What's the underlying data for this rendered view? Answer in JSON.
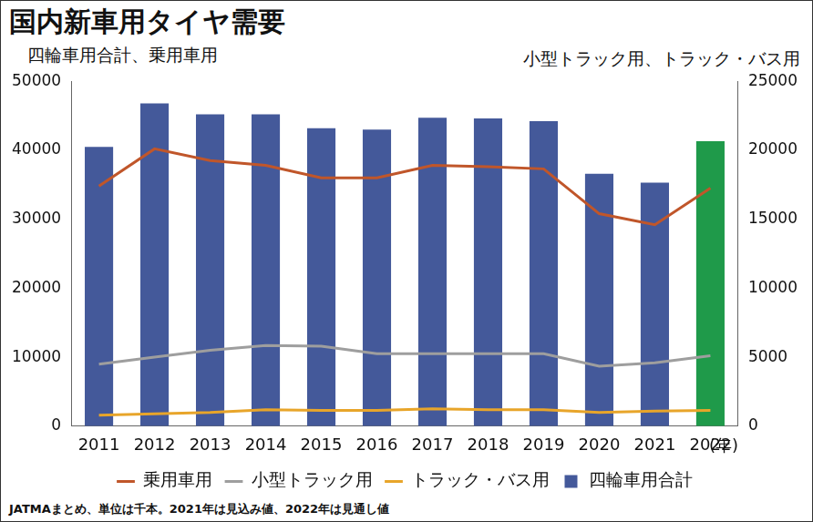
{
  "chart_data": {
    "type": "bar",
    "title": "国内新車用タイヤ需要",
    "ylabel": "四輪車用合計、乗用車用",
    "y2label": "小型トラック用、トラック・バス用",
    "xlabel": "(年)",
    "note": "JATMAまとめ、単位は千本。2021年は見込み値、2022年は見通し値",
    "categories": [
      "2011",
      "2012",
      "2013",
      "2014",
      "2015",
      "2016",
      "2017",
      "2018",
      "2019",
      "2020",
      "2021",
      "2022"
    ],
    "series": [
      {
        "name": "四輪車用合計",
        "type": "bar",
        "colors": [
          "#44599a",
          "#44599a",
          "#44599a",
          "#44599a",
          "#44599a",
          "#44599a",
          "#44599a",
          "#44599a",
          "#44599a",
          "#44599a",
          "#44599a",
          "#1f9a4a"
        ],
        "values": [
          40500,
          46800,
          45200,
          45200,
          43200,
          43000,
          44700,
          44600,
          44200,
          36600,
          35300,
          41300
        ]
      },
      {
        "name": "乗用車用",
        "type": "line",
        "color": "#c0562a",
        "values": [
          34800,
          40200,
          38500,
          37800,
          36000,
          36000,
          37800,
          37600,
          37300,
          30800,
          29200,
          34500
        ]
      },
      {
        "name": "小型トラック用",
        "type": "line",
        "color": "#9e9e9e",
        "axis": "y2",
        "values": [
          4500,
          5000,
          5500,
          5850,
          5800,
          5250,
          5250,
          5250,
          5250,
          4350,
          4600,
          5100
        ]
      },
      {
        "name": "トラック・バス用",
        "type": "line",
        "color": "#e8a52a",
        "axis": "y2",
        "values": [
          800,
          900,
          1000,
          1200,
          1150,
          1150,
          1250,
          1200,
          1200,
          1000,
          1100,
          1150
        ]
      }
    ],
    "ylim": [
      0,
      50000
    ],
    "yticks": [
      0,
      10000,
      20000,
      30000,
      40000,
      50000
    ],
    "y2lim": [
      0,
      25000
    ],
    "y2ticks": [
      0,
      5000,
      10000,
      15000,
      20000,
      25000
    ],
    "grid": false,
    "legend": "bottom"
  }
}
